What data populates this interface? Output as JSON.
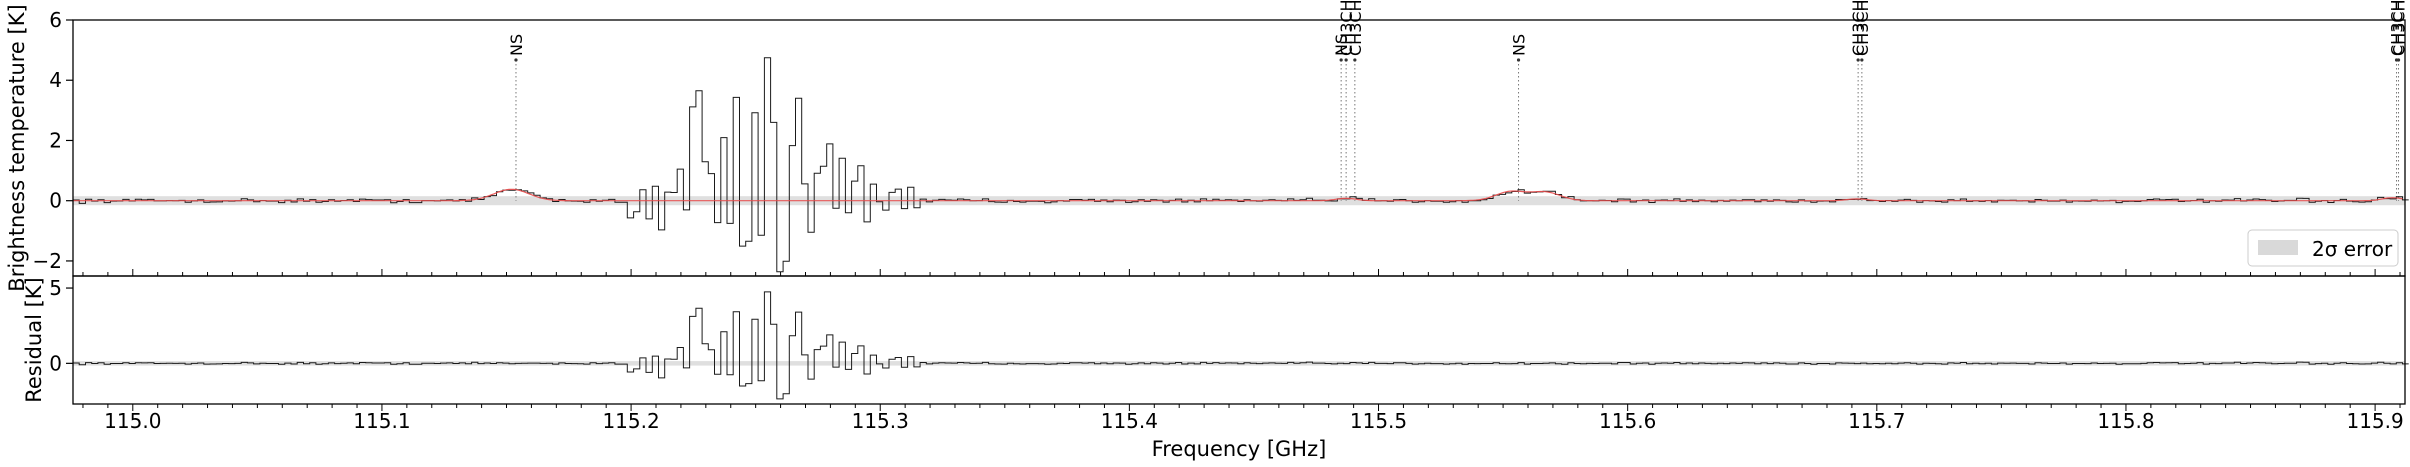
{
  "chart_data": {
    "type": "line",
    "xlabel": "Frequency [GHz]",
    "xlim": [
      114.976,
      115.912
    ],
    "x_ticks": [
      115.0,
      115.1,
      115.2,
      115.3,
      115.4,
      115.5,
      115.6,
      115.7,
      115.8,
      115.9
    ],
    "x_tick_labels": [
      "115.0",
      "115.1",
      "115.2",
      "115.3",
      "115.4",
      "115.5",
      "115.6",
      "115.7",
      "115.8",
      "115.9"
    ],
    "panels": {
      "top": {
        "ylabel": "Brightness temperature [K]",
        "ylim": [
          -2.5,
          6
        ],
        "y_ticks": [
          -2,
          0,
          2,
          4,
          6
        ],
        "y_tick_labels": [
          "−2",
          "0",
          "2",
          "4",
          "6"
        ],
        "error_band": [
          -0.15,
          0.15
        ],
        "legend": {
          "label": "2σ error",
          "placement": "lower-right"
        }
      },
      "bottom": {
        "ylabel": "Residual [K]",
        "ylim": [
          -2.7,
          5.8
        ],
        "y_ticks": [
          0,
          5
        ],
        "y_tick_labels": [
          "0",
          "5"
        ]
      }
    },
    "line_markers": [
      {
        "label": "NS",
        "x": 115.1538
      },
      {
        "label": "NS",
        "x": 115.485
      },
      {
        "label": "CH3CHO",
        "x": 115.487
      },
      {
        "label": "CH3CHO",
        "x": 115.4905
      },
      {
        "label": "NS",
        "x": 115.5562
      },
      {
        "label": "CH3CHO",
        "x": 115.6925
      },
      {
        "label": "CH3CHO",
        "x": 115.694
      },
      {
        "label": "CH3CHO",
        "x": 115.9086
      },
      {
        "label": "CH3CHO",
        "x": 115.9094
      }
    ],
    "series": [
      {
        "role": "observed spectrum",
        "color": "#000000",
        "x": [
          115.195,
          115.198,
          115.201,
          115.204,
          115.207,
          115.21,
          115.213,
          115.216,
          115.219,
          115.222,
          115.225,
          115.228,
          115.231,
          115.234,
          115.237,
          115.24,
          115.243,
          115.246,
          115.249,
          115.252,
          115.255,
          115.258,
          115.261,
          115.264,
          115.267,
          115.27,
          115.273,
          115.276,
          115.279,
          115.282,
          115.285,
          115.288,
          115.291,
          115.294,
          115.297,
          115.3,
          115.303,
          115.306,
          115.309,
          115.312,
          115.315
        ],
        "y": [
          0.2,
          -0.4,
          0.3,
          -0.6,
          0.5,
          -0.8,
          0.4,
          1.2,
          -0.5,
          3.2,
          4.0,
          1.0,
          -1.1,
          2.1,
          -0.7,
          3.4,
          -1.4,
          2.8,
          -1.2,
          4.5,
          2.6,
          -2.2,
          1.8,
          3.6,
          0.5,
          -1.0,
          1.1,
          1.9,
          -0.4,
          1.3,
          -0.3,
          0.9,
          -0.6,
          0.7,
          0.1,
          -0.3,
          0.4,
          -0.2,
          0.5,
          -0.1,
          0.1
        ]
      },
      {
        "role": "model",
        "color": "#e84a4a",
        "lines": [
          {
            "center": 115.152,
            "amplitude": 0.38,
            "width": 0.007
          },
          {
            "center": 115.553,
            "amplitude": 0.3,
            "width": 0.006
          },
          {
            "center": 115.567,
            "amplitude": 0.28,
            "width": 0.006
          },
          {
            "center": 115.487,
            "amplitude": 0.08,
            "width": 0.004
          },
          {
            "center": 115.692,
            "amplitude": 0.06,
            "width": 0.004
          },
          {
            "center": 115.907,
            "amplitude": 0.1,
            "width": 0.004
          }
        ]
      }
    ]
  }
}
